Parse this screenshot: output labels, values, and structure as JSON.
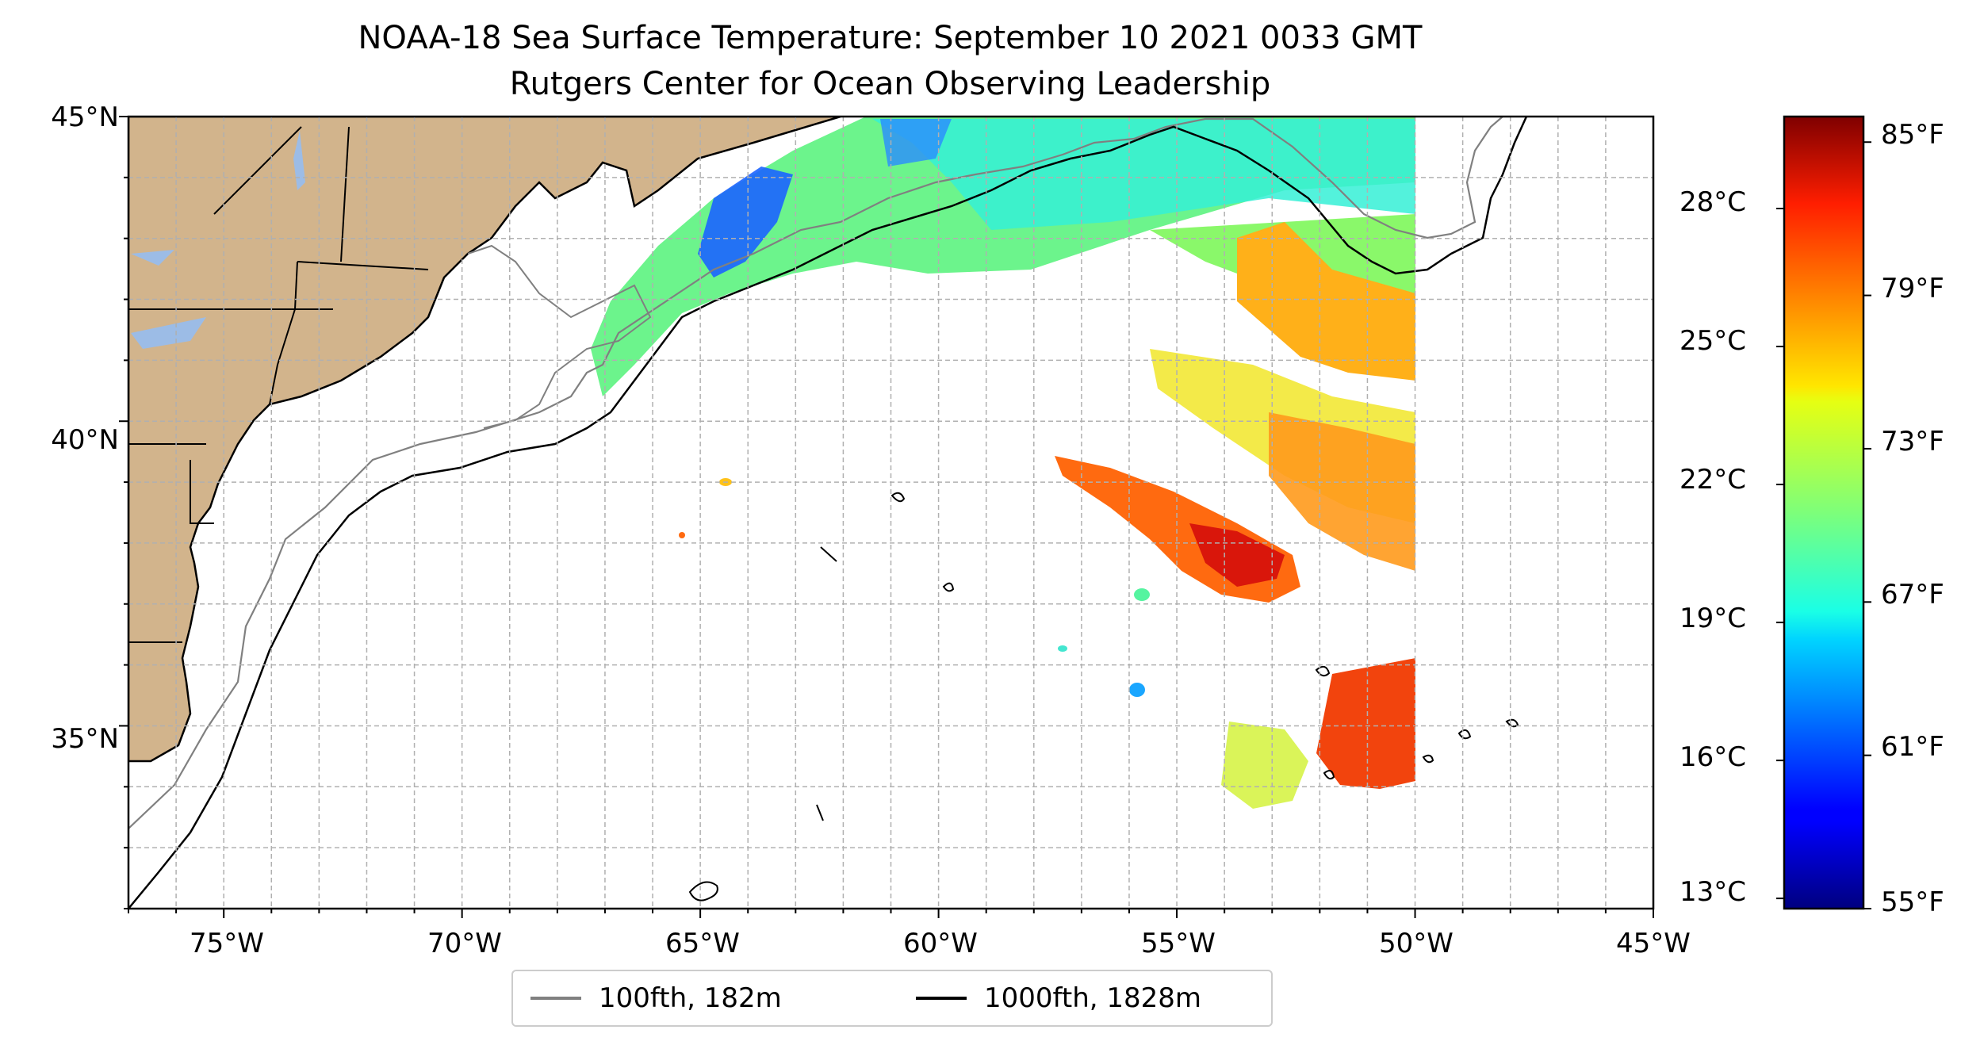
{
  "title": "NOAA-18 Sea Surface Temperature: September 10 2021 0033 GMT",
  "subtitle": "Rutgers Center for Ocean Observing Leadership",
  "map": {
    "y_ticks": [
      "45°N",
      "40°N",
      "35°N"
    ],
    "x_ticks": [
      "75°W",
      "70°W",
      "65°W",
      "60°W",
      "55°W",
      "50°W",
      "45°W"
    ],
    "lon_range": [
      -77,
      -45
    ],
    "lat_range": [
      32,
      45
    ],
    "land_color": "#d2b48c",
    "lake_color": "#9cbce6"
  },
  "colorbar": {
    "celsius_ticks": [
      "28°C",
      "25°C",
      "22°C",
      "19°C",
      "16°C",
      "13°C"
    ],
    "fahrenheit_ticks": [
      "85°F",
      "79°F",
      "73°F",
      "67°F",
      "61°F",
      "55°F"
    ],
    "colormap": "jet",
    "range_f": [
      55,
      86
    ]
  },
  "legend": {
    "items": [
      {
        "label": "100fth, 182m",
        "color": "#808080"
      },
      {
        "label": "1000fth, 1828m",
        "color": "#000000"
      }
    ]
  }
}
